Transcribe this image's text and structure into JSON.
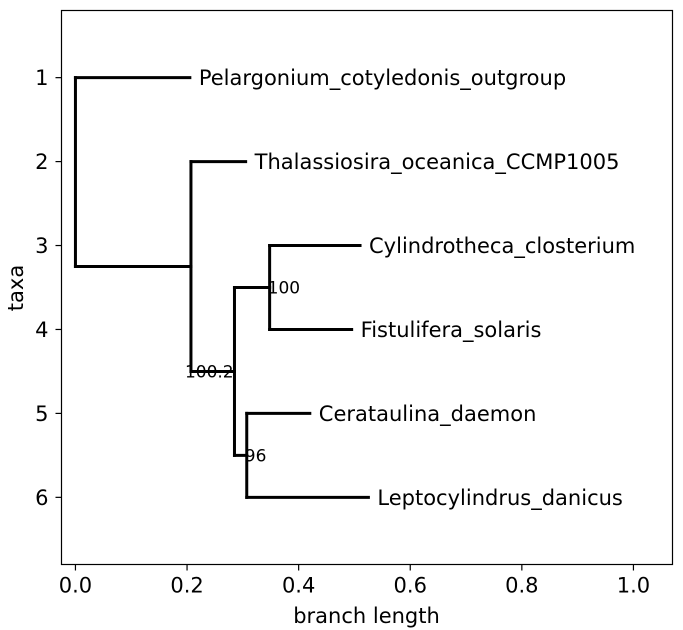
{
  "chart_data": {
    "type": "phylogenetic-tree",
    "xlabel": "branch length",
    "ylabel": "taxa",
    "xlim": [
      -0.025,
      1.07
    ],
    "ylim": [
      6.8,
      0.2
    ],
    "xticks": [
      "0.0",
      "0.2",
      "0.4",
      "0.6",
      "0.8",
      "1.0"
    ],
    "yticks": [
      "1",
      "2",
      "3",
      "4",
      "5",
      "6"
    ],
    "grid": false,
    "line_color": "#000000",
    "leaves": [
      {
        "name": "Pelargonium_cotyledonis_outgroup",
        "x": 0.205,
        "y": 1
      },
      {
        "name": "Thalassiosira_oceanica_CCMP1005",
        "x": 0.305,
        "y": 2
      },
      {
        "name": "Cylindrotheca_closterium",
        "x": 0.51,
        "y": 3
      },
      {
        "name": "Fistulifera_solaris",
        "x": 0.495,
        "y": 4
      },
      {
        "name": "Cerataulina_daemon",
        "x": 0.42,
        "y": 5
      },
      {
        "name": "Leptocylindrus_danicus",
        "x": 0.525,
        "y": 6
      }
    ],
    "internal_nodes": [
      {
        "id": "root",
        "x": 0.0,
        "y_span": [
          1,
          3.25
        ],
        "y": 3.25,
        "parent_x": 0.0
      },
      {
        "id": "n1",
        "x": 0.207,
        "y_span": [
          2,
          4.5
        ],
        "y": 3.25,
        "parent_x": 0.0
      },
      {
        "id": "n2",
        "x": 0.285,
        "y_span": [
          3.5,
          5.5
        ],
        "y": 4.5,
        "parent_x": 0.207,
        "support": "100.2"
      },
      {
        "id": "n3",
        "x": 0.348,
        "y_span": [
          3,
          4
        ],
        "y": 3.5,
        "parent_x": 0.285,
        "support": "100"
      },
      {
        "id": "n4",
        "x": 0.307,
        "y_span": [
          5,
          6
        ],
        "y": 5.5,
        "parent_x": 0.285,
        "support": "96"
      }
    ],
    "leaf_parents": [
      {
        "leaf": "Pelargonium_cotyledonis_outgroup",
        "parent_x": 0.0
      },
      {
        "leaf": "Thalassiosira_oceanica_CCMP1005",
        "parent_x": 0.207
      },
      {
        "leaf": "Cylindrotheca_closterium",
        "parent_x": 0.348
      },
      {
        "leaf": "Fistulifera_solaris",
        "parent_x": 0.348
      },
      {
        "leaf": "Cerataulina_daemon",
        "parent_x": 0.307
      },
      {
        "leaf": "Leptocylindrus_danicus",
        "parent_x": 0.307
      }
    ]
  }
}
